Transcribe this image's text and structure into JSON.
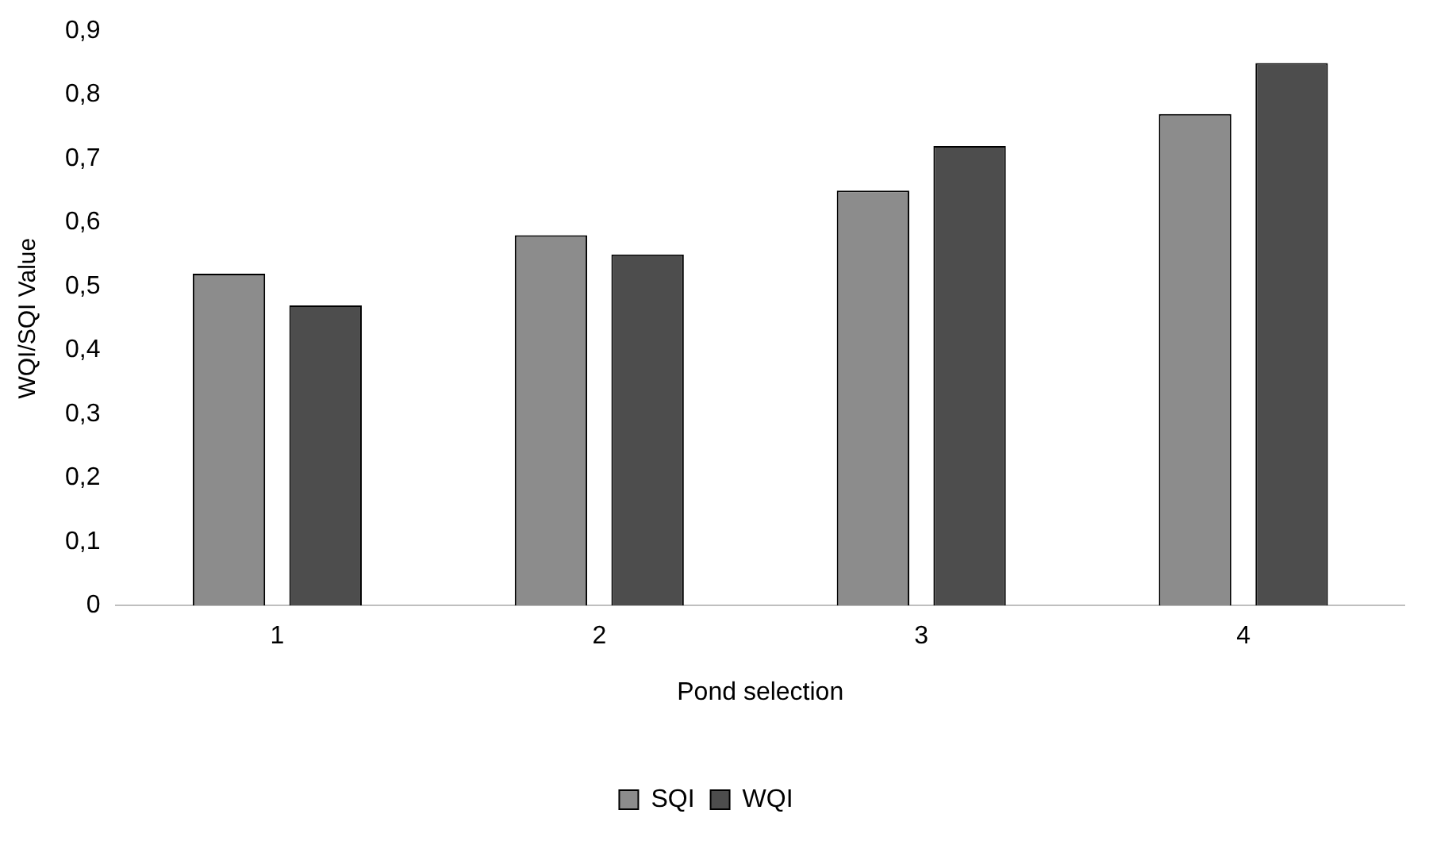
{
  "chart_data": {
    "type": "bar",
    "xlabel": "Pond selection",
    "ylabel": "WQI/SQI Value",
    "categories": [
      "1",
      "2",
      "3",
      "4"
    ],
    "series": [
      {
        "name": "SQI",
        "color": "#8c8c8c",
        "values": [
          0.52,
          0.58,
          0.65,
          0.77
        ]
      },
      {
        "name": "WQI",
        "color": "#4d4d4d",
        "values": [
          0.47,
          0.55,
          0.72,
          0.85
        ]
      }
    ],
    "ylim": [
      0,
      0.9
    ],
    "yticks": [
      {
        "value": 0,
        "label": "0"
      },
      {
        "value": 0.1,
        "label": "0,1"
      },
      {
        "value": 0.2,
        "label": "0,2"
      },
      {
        "value": 0.3,
        "label": "0,3"
      },
      {
        "value": 0.4,
        "label": "0,4"
      },
      {
        "value": 0.5,
        "label": "0,5"
      },
      {
        "value": 0.6,
        "label": "0,6"
      },
      {
        "value": 0.7,
        "label": "0,7"
      },
      {
        "value": 0.8,
        "label": "0,8"
      },
      {
        "value": 0.9,
        "label": "0,9"
      }
    ],
    "grid": false,
    "legend": "bottom"
  }
}
